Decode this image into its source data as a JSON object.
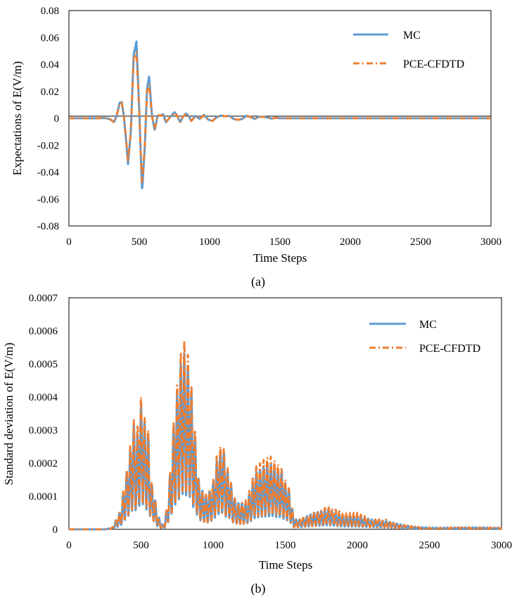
{
  "figure": {
    "background": "#ffffff",
    "series_colors": {
      "MC": "#5b9bd5",
      "PCE-CFDTD": "#ed7d31"
    }
  },
  "chart_data": [
    {
      "id": "a",
      "type": "line",
      "panel_label": "(a)",
      "title": "",
      "xlabel": "Time Steps",
      "ylabel": "Expectations of E(V/m)",
      "xlim": [
        0,
        3000
      ],
      "ylim": [
        -0.08,
        0.08
      ],
      "x_ticks": [
        0,
        500,
        1000,
        1500,
        2000,
        2500,
        3000
      ],
      "y_ticks": [
        -0.08,
        -0.06,
        -0.04,
        -0.02,
        0,
        0.02,
        0.04,
        0.06,
        0.08
      ],
      "x_tick_labels": [
        "0",
        "500",
        "1000",
        "1500",
        "2000",
        "2500",
        "3000"
      ],
      "y_tick_labels": [
        "-0.08",
        "-0.06",
        "-0.04",
        "-0.02",
        "0",
        "0.02",
        "0.04",
        "0.06",
        "0.08"
      ],
      "legend_position": "top-right",
      "x": [
        0,
        100,
        200,
        250,
        280,
        300,
        320,
        340,
        360,
        375,
        390,
        405,
        420,
        440,
        460,
        480,
        500,
        520,
        540,
        555,
        570,
        590,
        610,
        630,
        650,
        670,
        690,
        720,
        750,
        770,
        790,
        810,
        830,
        850,
        870,
        900,
        930,
        960,
        990,
        1020,
        1050,
        1080,
        1110,
        1140,
        1170,
        1200,
        1230,
        1260,
        1290,
        1320,
        1350,
        1380,
        1410,
        1440,
        1470,
        1500,
        1600,
        1800,
        2000,
        2500,
        3000
      ],
      "series": [
        {
          "name": "MC",
          "style": "solid",
          "values": [
            0,
            0,
            0,
            0.0002,
            -0.0003,
            -0.0012,
            -0.003,
            0.002,
            0.0115,
            0.012,
            0.002,
            -0.015,
            -0.034,
            -0.01,
            0.047,
            0.057,
            0.006,
            -0.055,
            -0.02,
            0.022,
            0.031,
            0.002,
            -0.009,
            0.002,
            0.002,
            0.003,
            -0.003,
            0.001,
            0.0045,
            0.002,
            -0.003,
            0.001,
            0.0035,
            0.002,
            -0.002,
            0.0018,
            -0.0005,
            0.0025,
            -0.001,
            -0.002,
            0.0008,
            0.002,
            0.0015,
            0.0018,
            -0.0005,
            -0.0012,
            -0.0006,
            0.0018,
            0.001,
            -0.0005,
            0.001,
            0.0012,
            0.0006,
            -0.0003,
            0.0004,
            0,
            0,
            0,
            0,
            0,
            0
          ]
        },
        {
          "name": "PCE-CFDTD",
          "style": "dashdot",
          "values": [
            0,
            0,
            0,
            0.0002,
            -0.0003,
            -0.0012,
            -0.003,
            0.002,
            0.011,
            0.0115,
            0.002,
            -0.014,
            -0.032,
            -0.009,
            0.044,
            0.049,
            0.004,
            -0.05,
            -0.018,
            0.02,
            0.025,
            0.001,
            -0.008,
            0.002,
            0.002,
            0.002,
            -0.003,
            0.001,
            0.004,
            0.002,
            -0.003,
            0.001,
            0.003,
            0.002,
            -0.002,
            0.0015,
            -0.0005,
            0.002,
            -0.001,
            -0.002,
            0.0008,
            0.0018,
            0.0015,
            0.0018,
            -0.0005,
            -0.0012,
            -0.0006,
            0.0015,
            0.001,
            -0.0005,
            0.001,
            0.001,
            0.0005,
            -0.0003,
            0.0003,
            0,
            0,
            0,
            0,
            0,
            0
          ]
        }
      ]
    },
    {
      "id": "b",
      "type": "line",
      "panel_label": "(b)",
      "title": "",
      "xlabel": "Time Steps",
      "ylabel": "Standard deviation of E(V/m)",
      "xlim": [
        0,
        3000
      ],
      "ylim": [
        0,
        0.0007
      ],
      "x_ticks": [
        0,
        500,
        1000,
        1500,
        2000,
        2500,
        3000
      ],
      "y_ticks": [
        0,
        0.0001,
        0.0002,
        0.0003,
        0.0004,
        0.0005,
        0.0006,
        0.0007
      ],
      "x_tick_labels": [
        "0",
        "500",
        "1000",
        "1500",
        "2000",
        "2500",
        "3000"
      ],
      "y_tick_labels": [
        "0",
        "0.0001",
        "0.0002",
        "0.0003",
        "0.0004",
        "0.0005",
        "0.0006",
        "0.0007"
      ],
      "legend_position": "top-right",
      "oscillation_period": 25,
      "x": [
        0,
        250,
        300,
        340,
        360,
        380,
        400,
        430,
        450,
        470,
        490,
        510,
        530,
        550,
        570,
        590,
        610,
        640,
        660,
        680,
        700,
        720,
        740,
        760,
        780,
        800,
        820,
        840,
        860,
        880,
        900,
        920,
        960,
        1000,
        1030,
        1050,
        1070,
        1090,
        1110,
        1140,
        1170,
        1200,
        1230,
        1260,
        1290,
        1320,
        1350,
        1380,
        1410,
        1440,
        1470,
        1500,
        1530,
        1560,
        1600,
        1700,
        1800,
        1900,
        2000,
        2100,
        2200,
        2300,
        2400,
        2500,
        2600,
        2700,
        2800,
        3000
      ],
      "series": [
        {
          "name": "MC",
          "style": "solid",
          "values": [
            0,
            0,
            5e-06,
            4e-05,
            6e-05,
            0.00012,
            0.00017,
            0.00025,
            0.00032,
            0.00026,
            0.00036,
            0.00038,
            0.0003,
            0.00029,
            0.00014,
            0.00012,
            5e-05,
            2e-05,
            1e-05,
            7e-05,
            0.00016,
            0.00028,
            0.00038,
            0.00044,
            0.00052,
            0.00053,
            0.00049,
            0.00048,
            0.00034,
            0.00026,
            0.00015,
            0.00012,
            0.0001,
            0.00014,
            0.00022,
            0.00024,
            0.00025,
            0.00018,
            0.00017,
            0.0001,
            8e-05,
            8e-05,
            8e-05,
            0.00012,
            0.00017,
            0.00018,
            0.00019,
            0.00019,
            0.0002,
            0.00018,
            0.00018,
            0.00014,
            0.00012,
            3e-05,
            3e-05,
            5e-05,
            6e-05,
            4e-05,
            4e-05,
            3e-05,
            2.5e-05,
            1.5e-05,
            8e-06,
            5e-06,
            5e-06,
            6e-06,
            6e-06,
            5e-06
          ]
        },
        {
          "name": "PCE-CFDTD",
          "style": "dashdot",
          "values": [
            0,
            0,
            5e-06,
            4e-05,
            6e-05,
            0.00013,
            0.00018,
            0.00027,
            0.00033,
            0.00028,
            0.00041,
            0.00039,
            0.00032,
            0.0003,
            0.00015,
            0.00012,
            5e-05,
            2e-05,
            1e-05,
            7e-05,
            0.00017,
            0.0003,
            0.0004,
            0.00047,
            0.00056,
            0.00057,
            0.00054,
            0.00051,
            0.00036,
            0.00028,
            0.00015,
            0.00012,
            0.0001,
            0.00015,
            0.00024,
            0.00025,
            0.00026,
            0.00019,
            0.00018,
            0.0001,
            8e-05,
            8e-05,
            9e-05,
            0.00013,
            0.00019,
            0.0002,
            0.00021,
            0.00022,
            0.00022,
            0.0002,
            0.00019,
            0.00015,
            0.00012,
            3e-05,
            3e-05,
            5e-05,
            7e-05,
            5e-05,
            5e-05,
            3e-05,
            3e-05,
            1.5e-05,
            8e-06,
            5e-06,
            5e-06,
            6e-06,
            6e-06,
            5e-06
          ]
        }
      ]
    }
  ]
}
